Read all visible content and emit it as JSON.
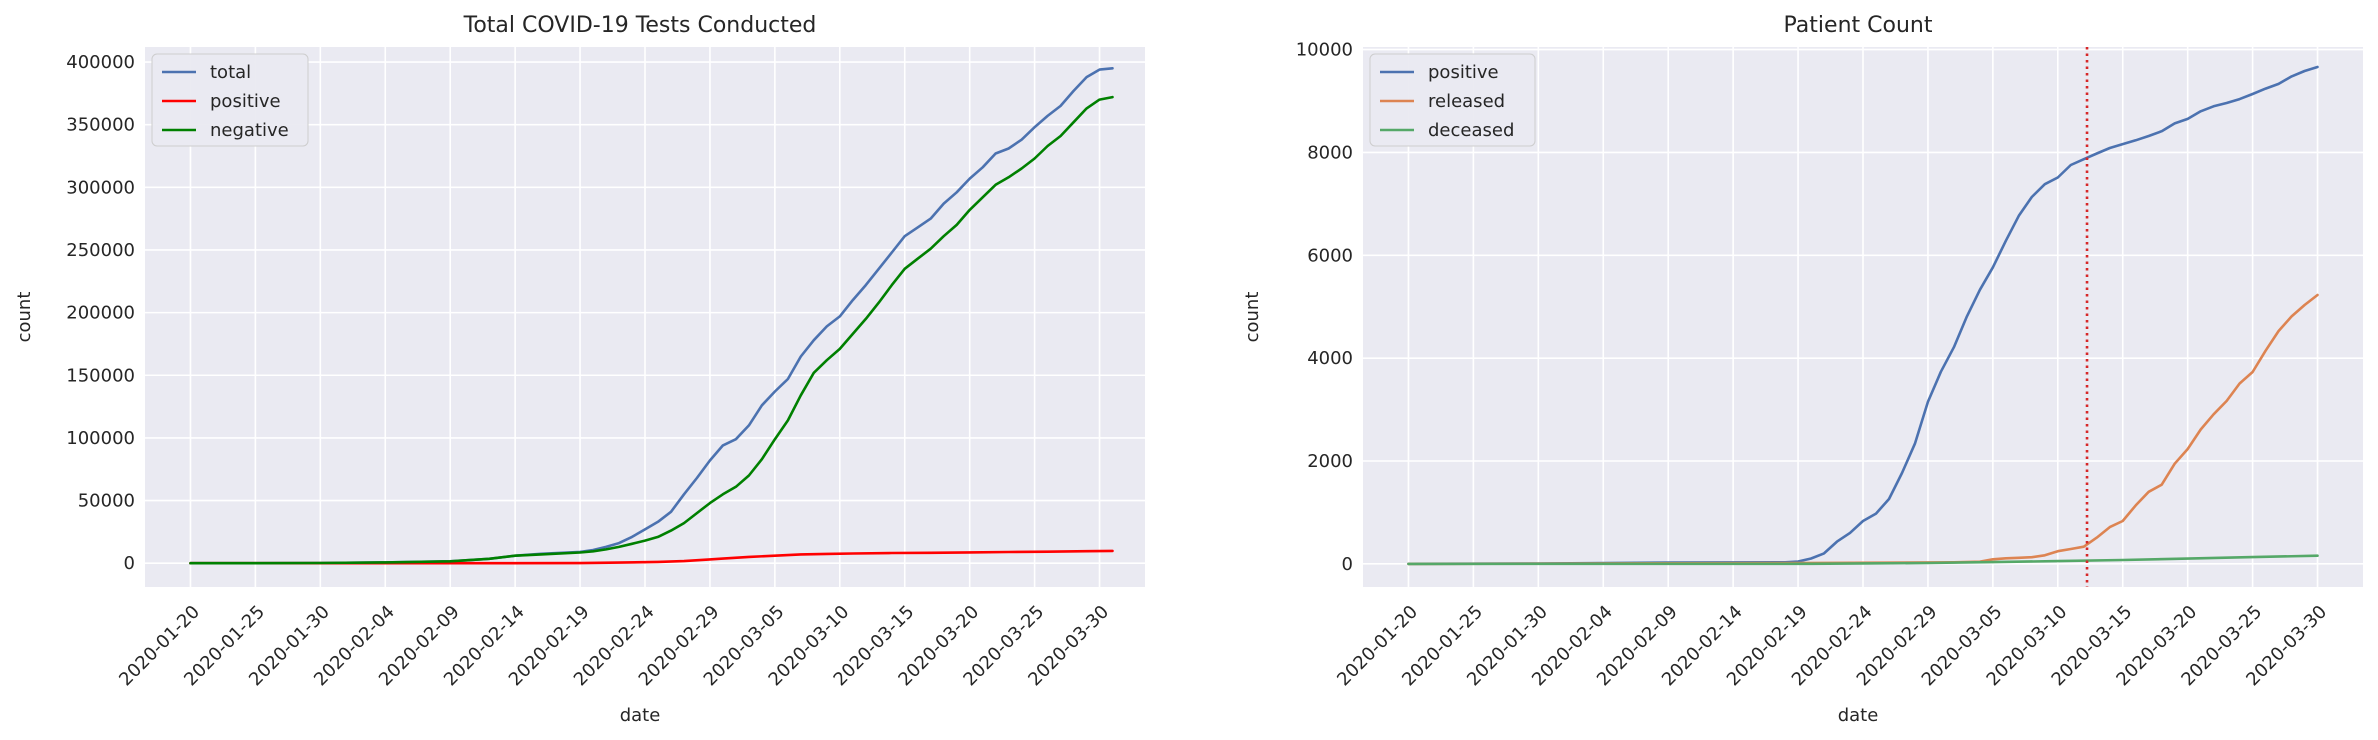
{
  "chart_data": [
    {
      "type": "line",
      "title": "Total COVID-19 Tests Conducted",
      "xlabel": "date",
      "ylabel": "count",
      "x_ticks": [
        "2020-01-20",
        "2020-01-25",
        "2020-01-30",
        "2020-02-04",
        "2020-02-09",
        "2020-02-14",
        "2020-02-19",
        "2020-02-24",
        "2020-02-29",
        "2020-03-05",
        "2020-03-10",
        "2020-03-15",
        "2020-03-20",
        "2020-03-25",
        "2020-03-30"
      ],
      "y_ticks": [
        0,
        50000,
        100000,
        150000,
        200000,
        250000,
        300000,
        350000,
        400000
      ],
      "xlim": [
        "2020-01-16T12:00",
        "2020-04-02T12:00"
      ],
      "ylim": [
        -19000,
        412000
      ],
      "grid": true,
      "legend": "top-left",
      "series": [
        {
          "name": "total",
          "color": "#4c72b0",
          "points": [
            [
              "2020-01-20",
              1
            ],
            [
              "2020-01-25",
              20
            ],
            [
              "2020-01-30",
              150
            ],
            [
              "2020-02-04",
              600
            ],
            [
              "2020-02-09",
              1500
            ],
            [
              "2020-02-12",
              3500
            ],
            [
              "2020-02-14",
              6000
            ],
            [
              "2020-02-16",
              7500
            ],
            [
              "2020-02-19",
              9000
            ],
            [
              "2020-02-20",
              10500
            ],
            [
              "2020-02-21",
              13000
            ],
            [
              "2020-02-22",
              16000
            ],
            [
              "2020-02-23",
              21000
            ],
            [
              "2020-02-24",
              27000
            ],
            [
              "2020-02-25",
              33000
            ],
            [
              "2020-02-26",
              41000
            ],
            [
              "2020-02-27",
              55000
            ],
            [
              "2020-02-28",
              68000
            ],
            [
              "2020-02-29",
              82000
            ],
            [
              "2020-03-01",
              94000
            ],
            [
              "2020-03-02",
              99000
            ],
            [
              "2020-03-03",
              110000
            ],
            [
              "2020-03-04",
              126000
            ],
            [
              "2020-03-05",
              137000
            ],
            [
              "2020-03-06",
              147000
            ],
            [
              "2020-03-07",
              165000
            ],
            [
              "2020-03-08",
              178000
            ],
            [
              "2020-03-09",
              189000
            ],
            [
              "2020-03-10",
              197000
            ],
            [
              "2020-03-11",
              210000
            ],
            [
              "2020-03-12",
              222000
            ],
            [
              "2020-03-13",
              235000
            ],
            [
              "2020-03-14",
              248000
            ],
            [
              "2020-03-15",
              261000
            ],
            [
              "2020-03-16",
              268000
            ],
            [
              "2020-03-17",
              275000
            ],
            [
              "2020-03-18",
              287000
            ],
            [
              "2020-03-19",
              296000
            ],
            [
              "2020-03-20",
              307000
            ],
            [
              "2020-03-21",
              316000
            ],
            [
              "2020-03-22",
              327000
            ],
            [
              "2020-03-23",
              331000
            ],
            [
              "2020-03-24",
              338000
            ],
            [
              "2020-03-25",
              348000
            ],
            [
              "2020-03-26",
              357000
            ],
            [
              "2020-03-27",
              365000
            ],
            [
              "2020-03-28",
              377000
            ],
            [
              "2020-03-29",
              388000
            ],
            [
              "2020-03-30",
              394000
            ],
            [
              "2020-03-31",
              395000
            ]
          ]
        },
        {
          "name": "positive",
          "color": "#ff0000",
          "points": [
            [
              "2020-01-20",
              1
            ],
            [
              "2020-02-09",
              30
            ],
            [
              "2020-02-19",
              100
            ],
            [
              "2020-02-22",
              500
            ],
            [
              "2020-02-25",
              1000
            ],
            [
              "2020-02-27",
              1700
            ],
            [
              "2020-02-29",
              3000
            ],
            [
              "2020-03-01",
              3700
            ],
            [
              "2020-03-03",
              5000
            ],
            [
              "2020-03-05",
              6000
            ],
            [
              "2020-03-07",
              7000
            ],
            [
              "2020-03-09",
              7400
            ],
            [
              "2020-03-11",
              7700
            ],
            [
              "2020-03-14",
              8100
            ],
            [
              "2020-03-17",
              8300
            ],
            [
              "2020-03-20",
              8650
            ],
            [
              "2020-03-23",
              8900
            ],
            [
              "2020-03-26",
              9200
            ],
            [
              "2020-03-29",
              9550
            ],
            [
              "2020-03-31",
              9800
            ]
          ]
        },
        {
          "name": "negative",
          "color": "#008000",
          "points": [
            [
              "2020-01-20",
              0
            ],
            [
              "2020-01-25",
              20
            ],
            [
              "2020-01-30",
              150
            ],
            [
              "2020-02-04",
              600
            ],
            [
              "2020-02-09",
              1500
            ],
            [
              "2020-02-12",
              3500
            ],
            [
              "2020-02-14",
              6000
            ],
            [
              "2020-02-16",
              7000
            ],
            [
              "2020-02-19",
              8500
            ],
            [
              "2020-02-20",
              9500
            ],
            [
              "2020-02-21",
              11000
            ],
            [
              "2020-02-22",
              13000
            ],
            [
              "2020-02-23",
              15500
            ],
            [
              "2020-02-24",
              18000
            ],
            [
              "2020-02-25",
              21000
            ],
            [
              "2020-02-26",
              26000
            ],
            [
              "2020-02-27",
              32000
            ],
            [
              "2020-02-28",
              40000
            ],
            [
              "2020-02-29",
              48000
            ],
            [
              "2020-03-01",
              55000
            ],
            [
              "2020-03-02",
              61000
            ],
            [
              "2020-03-03",
              70000
            ],
            [
              "2020-03-04",
              83000
            ],
            [
              "2020-03-05",
              99000
            ],
            [
              "2020-03-06",
              114000
            ],
            [
              "2020-03-07",
              134000
            ],
            [
              "2020-03-08",
              152000
            ],
            [
              "2020-03-09",
              162000
            ],
            [
              "2020-03-10",
              171000
            ],
            [
              "2020-03-11",
              183000
            ],
            [
              "2020-03-12",
              195000
            ],
            [
              "2020-03-13",
              208000
            ],
            [
              "2020-03-14",
              222000
            ],
            [
              "2020-03-15",
              235000
            ],
            [
              "2020-03-16",
              243000
            ],
            [
              "2020-03-17",
              251000
            ],
            [
              "2020-03-18",
              261000
            ],
            [
              "2020-03-19",
              270000
            ],
            [
              "2020-03-20",
              282000
            ],
            [
              "2020-03-21",
              292000
            ],
            [
              "2020-03-22",
              302000
            ],
            [
              "2020-03-23",
              308000
            ],
            [
              "2020-03-24",
              315000
            ],
            [
              "2020-03-25",
              323000
            ],
            [
              "2020-03-26",
              333000
            ],
            [
              "2020-03-27",
              341000
            ],
            [
              "2020-03-28",
              352000
            ],
            [
              "2020-03-29",
              363000
            ],
            [
              "2020-03-30",
              370000
            ],
            [
              "2020-03-31",
              372000
            ]
          ]
        }
      ]
    },
    {
      "type": "line",
      "title": "Patient Count",
      "xlabel": "date",
      "ylabel": "count",
      "x_ticks": [
        "2020-01-20",
        "2020-01-25",
        "2020-01-30",
        "2020-02-04",
        "2020-02-09",
        "2020-02-14",
        "2020-02-19",
        "2020-02-24",
        "2020-02-29",
        "2020-03-05",
        "2020-03-10",
        "2020-03-15",
        "2020-03-20",
        "2020-03-25",
        "2020-03-30"
      ],
      "y_ticks": [
        0,
        2000,
        4000,
        6000,
        8000,
        10000
      ],
      "xlim": [
        "2020-01-16T12:00",
        "2020-04-02T12:00"
      ],
      "ylim": [
        -450,
        10050
      ],
      "grid": true,
      "legend": "top-left",
      "vline": {
        "x": "2020-03-12T06:00",
        "color": "#d62728",
        "style": "dotted"
      },
      "series": [
        {
          "name": "positive",
          "color": "#4c72b0",
          "points": [
            [
              "2020-01-20",
              1
            ],
            [
              "2020-01-30",
              6
            ],
            [
              "2020-02-09",
              27
            ],
            [
              "2020-02-18",
              31
            ],
            [
              "2020-02-19",
              46
            ],
            [
              "2020-02-20",
              104
            ],
            [
              "2020-02-21",
              204
            ],
            [
              "2020-02-22",
              433
            ],
            [
              "2020-02-23",
              602
            ],
            [
              "2020-02-24",
              833
            ],
            [
              "2020-02-25",
              977
            ],
            [
              "2020-02-26",
              1261
            ],
            [
              "2020-02-27",
              1766
            ],
            [
              "2020-02-28",
              2337
            ],
            [
              "2020-02-29",
              3150
            ],
            [
              "2020-03-01",
              3736
            ],
            [
              "2020-03-02",
              4212
            ],
            [
              "2020-03-03",
              4812
            ],
            [
              "2020-03-04",
              5328
            ],
            [
              "2020-03-05",
              5766
            ],
            [
              "2020-03-06",
              6284
            ],
            [
              "2020-03-07",
              6767
            ],
            [
              "2020-03-08",
              7134
            ],
            [
              "2020-03-09",
              7382
            ],
            [
              "2020-03-10",
              7513
            ],
            [
              "2020-03-11",
              7755
            ],
            [
              "2020-03-12",
              7869
            ],
            [
              "2020-03-13",
              7979
            ],
            [
              "2020-03-14",
              8086
            ],
            [
              "2020-03-15",
              8162
            ],
            [
              "2020-03-16",
              8236
            ],
            [
              "2020-03-17",
              8320
            ],
            [
              "2020-03-18",
              8413
            ],
            [
              "2020-03-19",
              8565
            ],
            [
              "2020-03-20",
              8652
            ],
            [
              "2020-03-21",
              8799
            ],
            [
              "2020-03-22",
              8897
            ],
            [
              "2020-03-23",
              8961
            ],
            [
              "2020-03-24",
              9037
            ],
            [
              "2020-03-25",
              9137
            ],
            [
              "2020-03-26",
              9241
            ],
            [
              "2020-03-27",
              9332
            ],
            [
              "2020-03-28",
              9478
            ],
            [
              "2020-03-29",
              9583
            ],
            [
              "2020-03-30",
              9661
            ]
          ]
        },
        {
          "name": "released",
          "color": "#dd8452",
          "points": [
            [
              "2020-01-20",
              0
            ],
            [
              "2020-02-19",
              16
            ],
            [
              "2020-03-02",
              30
            ],
            [
              "2020-03-04",
              41
            ],
            [
              "2020-03-05",
              88
            ],
            [
              "2020-03-06",
              108
            ],
            [
              "2020-03-07",
              118
            ],
            [
              "2020-03-08",
              130
            ],
            [
              "2020-03-09",
              166
            ],
            [
              "2020-03-10",
              247
            ],
            [
              "2020-03-11",
              288
            ],
            [
              "2020-03-12",
              333
            ],
            [
              "2020-03-13",
              510
            ],
            [
              "2020-03-14",
              714
            ],
            [
              "2020-03-15",
              834
            ],
            [
              "2020-03-16",
              1137
            ],
            [
              "2020-03-17",
              1401
            ],
            [
              "2020-03-18",
              1540
            ],
            [
              "2020-03-19",
              1947
            ],
            [
              "2020-03-20",
              2233
            ],
            [
              "2020-03-21",
              2612
            ],
            [
              "2020-03-22",
              2909
            ],
            [
              "2020-03-23",
              3166
            ],
            [
              "2020-03-24",
              3507
            ],
            [
              "2020-03-25",
              3730
            ],
            [
              "2020-03-26",
              4144
            ],
            [
              "2020-03-27",
              4528
            ],
            [
              "2020-03-28",
              4811
            ],
            [
              "2020-03-29",
              5033
            ],
            [
              "2020-03-30",
              5228
            ]
          ]
        },
        {
          "name": "deceased",
          "color": "#55a868",
          "points": [
            [
              "2020-01-20",
              0
            ],
            [
              "2020-02-20",
              1
            ],
            [
              "2020-02-24",
              8
            ],
            [
              "2020-02-29",
              17
            ],
            [
              "2020-03-05",
              35
            ],
            [
              "2020-03-10",
              54
            ],
            [
              "2020-03-15",
              75
            ],
            [
              "2020-03-20",
              102
            ],
            [
              "2020-03-25",
              131
            ],
            [
              "2020-03-30",
              158
            ]
          ]
        }
      ]
    }
  ]
}
